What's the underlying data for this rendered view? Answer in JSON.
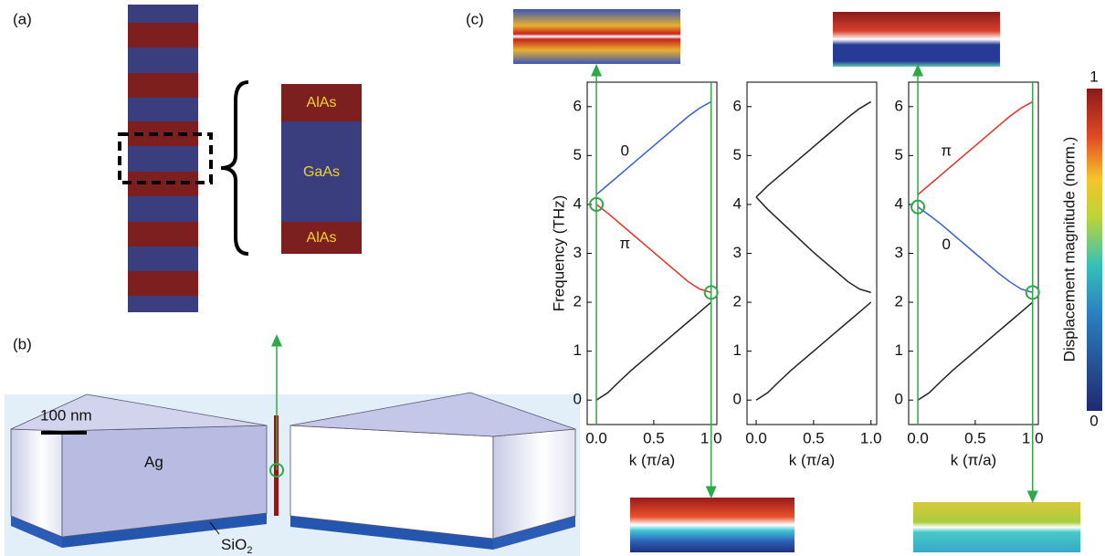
{
  "panels": {
    "a": "(a)",
    "b": "(b)",
    "c": "(c)"
  },
  "layers": [
    "AlAs",
    "GaAs",
    "AlAs"
  ],
  "device": {
    "scale": "100 nm",
    "metal": "Ag",
    "substrate": {
      "text": "SiO",
      "sub": "2"
    }
  },
  "colorbar": {
    "title": "Displacement magnitude (norm.)",
    "ticks": [
      1,
      0
    ]
  },
  "chart_data": [
    {
      "type": "line",
      "ylabel": "Frequency (THz)",
      "xlabel": "k (π/a)",
      "x": [
        0,
        0.1,
        0.2,
        0.3,
        0.4,
        0.5,
        0.6,
        0.7,
        0.8,
        0.9,
        1.0
      ],
      "series": [
        {
          "name": "0",
          "color": "#3a5fcd",
          "values": [
            4.2,
            4.4,
            4.6,
            4.8,
            5.0,
            5.2,
            5.4,
            5.6,
            5.8,
            5.97,
            6.1
          ]
        },
        {
          "name": "π",
          "color": "#e8302a",
          "values": [
            4.0,
            3.82,
            3.62,
            3.42,
            3.22,
            3.02,
            2.82,
            2.62,
            2.42,
            2.27,
            2.2
          ]
        },
        {
          "color": "#222222",
          "values": [
            0,
            0.15,
            0.38,
            0.6,
            0.8,
            1.0,
            1.2,
            1.4,
            1.6,
            1.8,
            2.0
          ]
        }
      ],
      "xlim": [
        -0.08,
        1.05
      ],
      "ylim": [
        -0.5,
        6.5
      ],
      "xticks": [
        {
          "value": 0,
          "label": "0.0"
        },
        0.5,
        {
          "value": 1,
          "label": "1.0"
        }
      ],
      "yticks": [
        0,
        1,
        2,
        3,
        4,
        5,
        6
      ]
    },
    {
      "type": "line",
      "xlabel": "k (π/a)",
      "x": [
        0,
        0.1,
        0.2,
        0.3,
        0.4,
        0.5,
        0.6,
        0.7,
        0.8,
        0.9,
        1.0
      ],
      "series": [
        {
          "color": "#222222",
          "values": [
            4.15,
            4.38,
            4.58,
            4.78,
            4.98,
            5.18,
            5.38,
            5.58,
            5.78,
            5.96,
            6.1
          ]
        },
        {
          "color": "#222222",
          "values": [
            4.15,
            3.9,
            3.68,
            3.46,
            3.24,
            3.02,
            2.82,
            2.62,
            2.42,
            2.27,
            2.2
          ]
        },
        {
          "color": "#222222",
          "values": [
            0,
            0.15,
            0.38,
            0.6,
            0.8,
            1.0,
            1.2,
            1.4,
            1.6,
            1.8,
            2.0
          ]
        }
      ],
      "xlim": [
        -0.08,
        1.05
      ],
      "ylim": [
        -0.5,
        6.5
      ],
      "xticks": [
        {
          "value": 0,
          "label": "0.0"
        },
        0.5,
        {
          "value": 1,
          "label": "1.0"
        }
      ],
      "yticks": [
        0,
        1,
        2,
        3,
        4,
        5,
        6
      ]
    },
    {
      "type": "line",
      "xlabel": "k (π/a)",
      "x": [
        0,
        0.1,
        0.2,
        0.3,
        0.4,
        0.5,
        0.6,
        0.7,
        0.8,
        0.9,
        1.0
      ],
      "series": [
        {
          "name": "π",
          "color": "#e8302a",
          "values": [
            4.2,
            4.4,
            4.6,
            4.8,
            5.0,
            5.2,
            5.4,
            5.6,
            5.8,
            5.97,
            6.1
          ]
        },
        {
          "name": "0",
          "color": "#3a5fcd",
          "values": [
            3.95,
            3.78,
            3.6,
            3.4,
            3.2,
            3.0,
            2.8,
            2.6,
            2.42,
            2.27,
            2.2
          ]
        },
        {
          "color": "#222222",
          "values": [
            0,
            0.15,
            0.38,
            0.6,
            0.8,
            1.0,
            1.2,
            1.4,
            1.6,
            1.8,
            2.0
          ]
        }
      ],
      "xlim": [
        -0.08,
        1.05
      ],
      "ylim": [
        -0.5,
        6.5
      ],
      "xticks": [
        {
          "value": 0,
          "label": "0.0"
        },
        0.5,
        {
          "value": 1,
          "label": "1.0"
        }
      ],
      "yticks": [
        0,
        1,
        2,
        3,
        4,
        5,
        6
      ]
    }
  ]
}
